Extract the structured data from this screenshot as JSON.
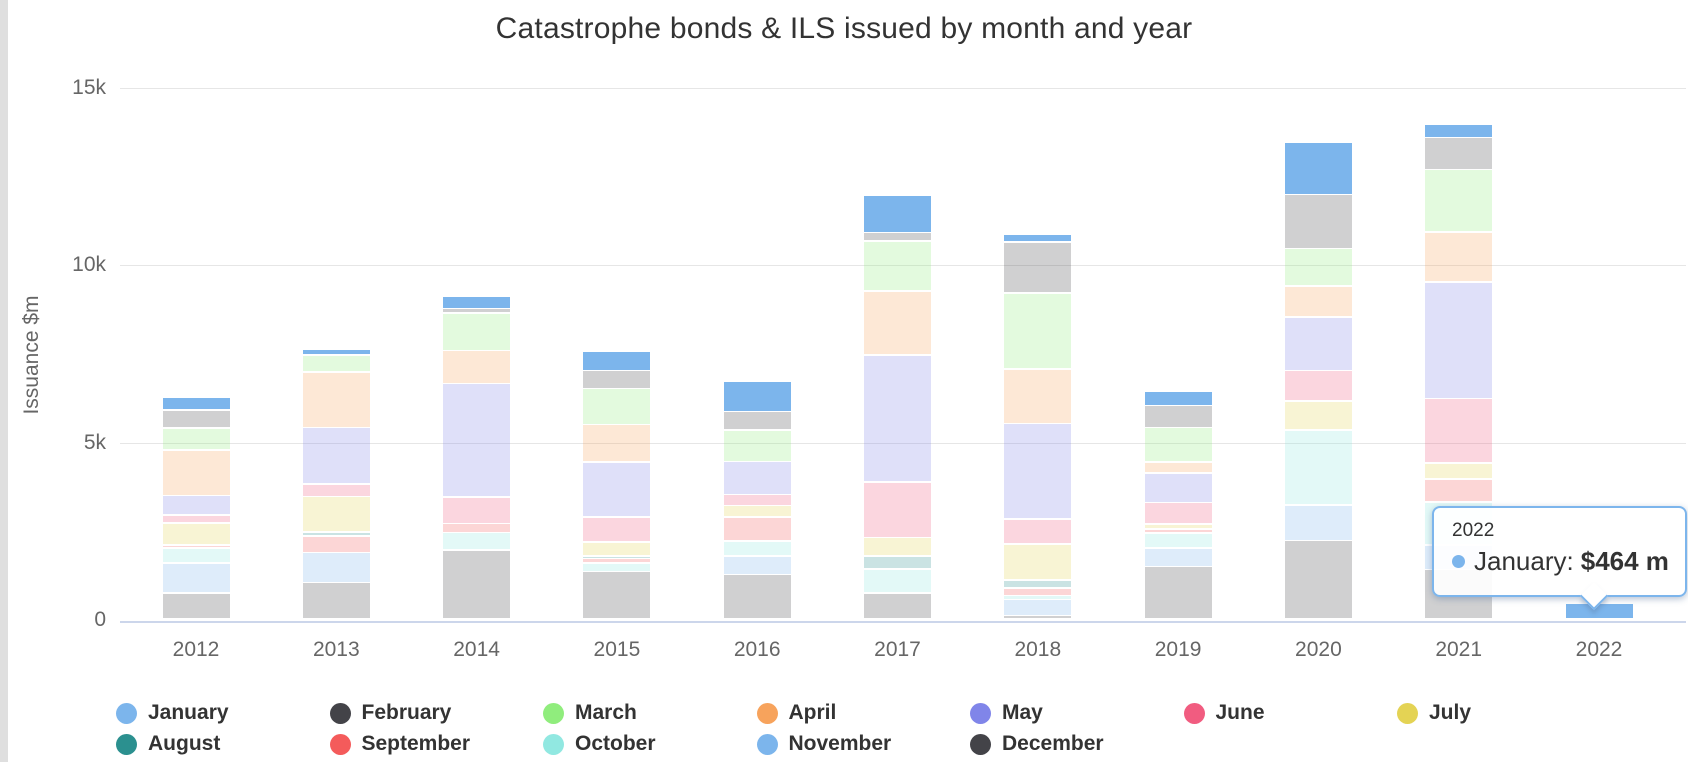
{
  "page": {
    "title": "Catastrophe bonds & ILS issued by month and year"
  },
  "y_axis": {
    "title": "Issuance $m",
    "tick_labels": [
      "0",
      "5k",
      "10k",
      "15k"
    ],
    "tick_values": [
      0,
      5000,
      10000,
      15000
    ],
    "max": 15000
  },
  "x_axis": {
    "categories": [
      "2012",
      "2013",
      "2014",
      "2015",
      "2016",
      "2017",
      "2018",
      "2019",
      "2020",
      "2021",
      "2022"
    ]
  },
  "highlight": {
    "series": "January",
    "inactive_opacity": 0.25,
    "accent_color": "#7cb5ec"
  },
  "tooltip": {
    "header": "2022",
    "label": "January: ",
    "value": "$464 m",
    "dot_color": "#7cb5ec",
    "border_color": "#7cb5ec"
  },
  "chart_data": {
    "type": "bar",
    "stacked": true,
    "stack_order": "first-series-on-top",
    "title": "Catastrophe bonds & ILS issued by month and year",
    "xlabel": "",
    "ylabel": "Issuance $m",
    "ylim": [
      0,
      15000
    ],
    "grid": true,
    "legend_position": "bottom",
    "categories": [
      "2012",
      "2013",
      "2014",
      "2015",
      "2016",
      "2017",
      "2018",
      "2019",
      "2020",
      "2021",
      "2022"
    ],
    "values_unit": "$m (estimated from pixels)",
    "series": [
      {
        "name": "January",
        "color": "#7cb5ec",
        "values": [
          355,
          155,
          340,
          540,
          850,
          1045,
          220,
          410,
          1490,
          365,
          464
        ]
      },
      {
        "name": "February",
        "color": "#434348",
        "values": [
          515,
          0,
          125,
          510,
          515,
          245,
          1440,
          620,
          1515,
          895,
          0
        ]
      },
      {
        "name": "March",
        "color": "#90ed7d",
        "values": [
          610,
          470,
          1055,
          1015,
          895,
          1405,
          2150,
          980,
          1060,
          1765,
          0
        ]
      },
      {
        "name": "April",
        "color": "#f7a35c",
        "values": [
          1285,
          1570,
          935,
          1050,
          0,
          1810,
          1535,
          310,
          870,
          1410,
          0
        ]
      },
      {
        "name": "May",
        "color": "#8085e9",
        "values": [
          550,
          1600,
          3200,
          1560,
          925,
          3585,
          2695,
          830,
          1515,
          3285,
          0
        ]
      },
      {
        "name": "June",
        "color": "#f15c80",
        "values": [
          230,
          345,
          745,
          700,
          315,
          1560,
          705,
          605,
          860,
          1820,
          0
        ]
      },
      {
        "name": "July",
        "color": "#e4d354",
        "values": [
          610,
          1005,
          0,
          385,
          315,
          510,
          1015,
          145,
          810,
          450,
          0
        ]
      },
      {
        "name": "August",
        "color": "#2b908f",
        "values": [
          0,
          105,
          0,
          75,
          0,
          370,
          220,
          0,
          0,
          0,
          0
        ]
      },
      {
        "name": "September",
        "color": "#f45b5b",
        "values": [
          100,
          470,
          250,
          125,
          685,
          0,
          210,
          115,
          0,
          655,
          0
        ]
      },
      {
        "name": "October",
        "color": "#91e8e1",
        "values": [
          420,
          0,
          495,
          245,
          420,
          685,
          120,
          420,
          2125,
          1200,
          0
        ]
      },
      {
        "name": "November",
        "color": "#7cb5ec",
        "values": [
          835,
          850,
          0,
          0,
          525,
          0,
          450,
          515,
          1000,
          700,
          0
        ]
      },
      {
        "name": "December",
        "color": "#434348",
        "values": [
          745,
          1030,
          1955,
          1345,
          1260,
          735,
          100,
          1490,
          2215,
          1400,
          0
        ]
      }
    ]
  }
}
